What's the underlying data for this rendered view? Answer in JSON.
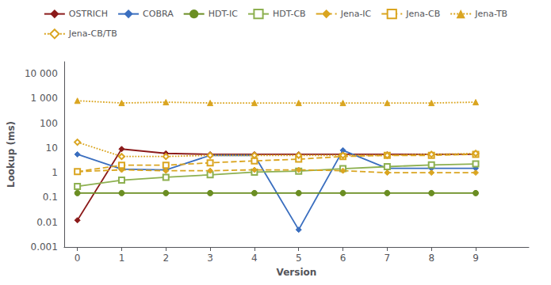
{
  "chart_data": {
    "type": "line",
    "xlabel": "Version",
    "ylabel": "Lookup (ms)",
    "log": "y",
    "grid": false,
    "legend": "top",
    "xlim": [
      -0.3,
      10.2
    ],
    "xticks": [
      0,
      1,
      2,
      3,
      4,
      5,
      6,
      7,
      8,
      9
    ],
    "ylim": [
      0.001,
      30000
    ],
    "yticks": [
      0.001,
      0.01,
      0.1,
      1,
      10,
      100,
      {
        "value": 1000,
        "label": "1 000"
      },
      {
        "value": 10000,
        "label": "10 000"
      }
    ],
    "x": [
      0,
      1,
      2,
      3,
      4,
      5,
      6,
      7,
      8,
      9
    ],
    "series": [
      {
        "name": "OSTRICH",
        "color": "#8B1A1A",
        "marker": "diamond",
        "line_style": "solid",
        "values": [
          0.012,
          9.0,
          6.0,
          5.5,
          5.5,
          5.5,
          5.5,
          5.5,
          5.5,
          5.5
        ]
      },
      {
        "name": "COBRA",
        "color": "#3A6EBF",
        "marker": "diamond",
        "line_style": "solid",
        "values": [
          5.5,
          1.4,
          1.3,
          5.0,
          5.0,
          0.005,
          8.0,
          1.5,
          1.5,
          1.5
        ]
      },
      {
        "name": "HDT-IC",
        "color": "#6B8E23",
        "marker": "circle",
        "line_style": "solid",
        "values": [
          0.15,
          0.15,
          0.15,
          0.15,
          0.15,
          0.15,
          0.15,
          0.15,
          0.15,
          0.15
        ]
      },
      {
        "name": "HDT-CB",
        "color": "#8DB050",
        "marker": "open-square",
        "line_style": "solid",
        "values": [
          0.28,
          0.5,
          0.65,
          0.82,
          1.05,
          1.15,
          1.45,
          1.75,
          2.05,
          2.25
        ]
      },
      {
        "name": "Jena-IC",
        "color": "#DAA520",
        "marker": "diamond",
        "line_style": "dashed",
        "values": [
          1.1,
          1.3,
          1.2,
          1.2,
          1.3,
          1.3,
          1.2,
          1.0,
          1.0,
          1.0
        ]
      },
      {
        "name": "Jena-CB",
        "color": "#DAA520",
        "marker": "open-square",
        "line_style": "dashed",
        "values": [
          1.1,
          2.0,
          2.0,
          2.5,
          3.0,
          3.5,
          4.5,
          5.0,
          5.0,
          5.5
        ]
      },
      {
        "name": "Jena-TB",
        "color": "#DAA520",
        "marker": "triangle",
        "line_style": "dotted",
        "values": [
          800,
          650,
          700,
          650,
          650,
          650,
          650,
          650,
          650,
          700
        ]
      },
      {
        "name": "Jena-CB/TB",
        "color": "#DAA520",
        "marker": "open-diamond",
        "line_style": "dotted",
        "values": [
          17,
          4.5,
          4.5,
          5.0,
          5.0,
          5.0,
          5.0,
          5.0,
          5.5,
          6.0
        ]
      }
    ]
  }
}
